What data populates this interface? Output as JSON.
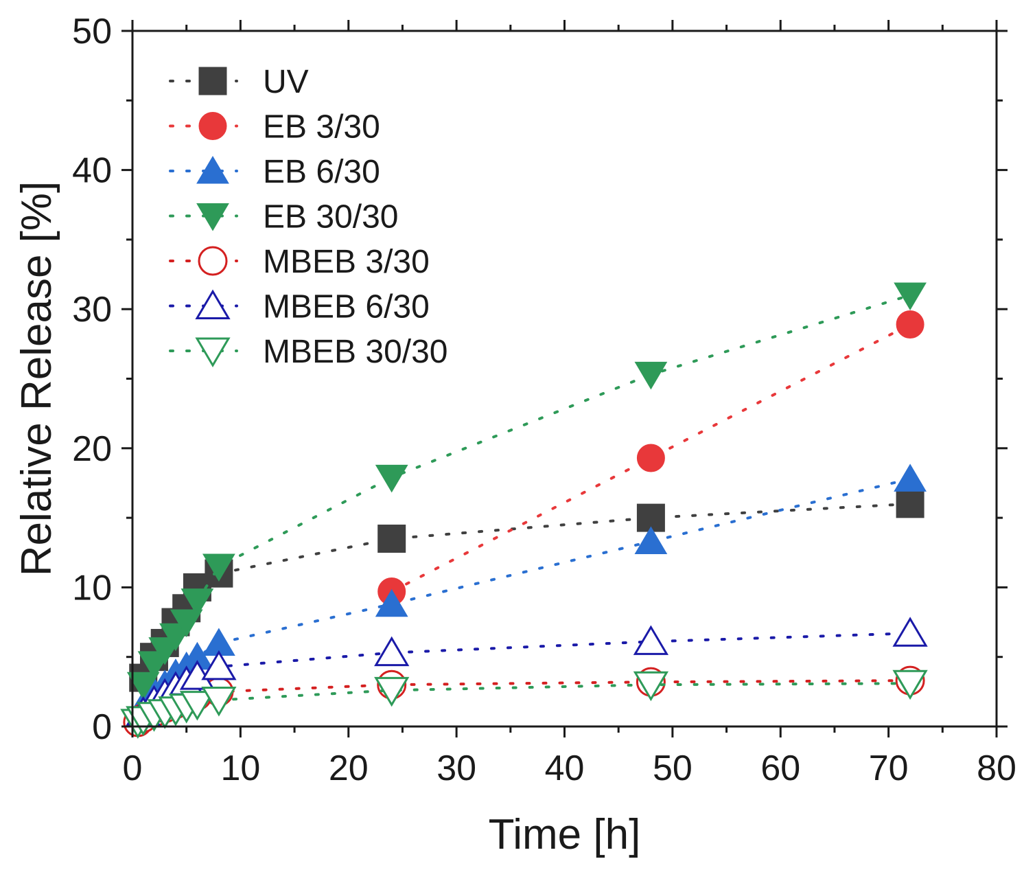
{
  "chart_data": {
    "type": "scatter",
    "title": "",
    "xlabel": "Time [h]",
    "ylabel": "Relative Release [%]",
    "xlim": [
      0,
      80
    ],
    "ylim": [
      0,
      50
    ],
    "xticks": [
      0,
      10,
      20,
      30,
      40,
      50,
      60,
      70,
      80
    ],
    "yticks": [
      0,
      10,
      20,
      30,
      40,
      50
    ],
    "grid": false,
    "legend_position": "top-left",
    "series": [
      {
        "name": "UV",
        "color": "#404040",
        "marker": "square",
        "filled": true,
        "x": [
          1,
          2,
          3,
          4,
          5,
          6,
          8,
          24,
          48,
          72
        ],
        "y": [
          3.5,
          5,
          6,
          7.5,
          8.5,
          10,
          11,
          13.5,
          15,
          16
        ]
      },
      {
        "name": "EB 3/30",
        "color": "#e8383a",
        "marker": "circle",
        "filled": true,
        "x": [
          24,
          48,
          72
        ],
        "y": [
          9.7,
          19.3,
          28.9
        ]
      },
      {
        "name": "EB 6/30",
        "color": "#2a6fd1",
        "marker": "triangle-up",
        "filled": true,
        "x": [
          1,
          2,
          3,
          4,
          5,
          6,
          8,
          24,
          48,
          72
        ],
        "y": [
          1.5,
          2.5,
          3,
          3.8,
          4.3,
          5,
          6,
          8.8,
          13.3,
          17.8
        ]
      },
      {
        "name": "EB 30/30",
        "color": "#2e9a58",
        "marker": "triangle-down",
        "filled": true,
        "x": [
          1,
          2,
          3,
          4,
          5,
          6,
          8,
          24,
          48,
          72
        ],
        "y": [
          3,
          4.5,
          5.5,
          6.5,
          7.5,
          9,
          11.5,
          17.9,
          25.3,
          31
        ]
      },
      {
        "name": "MBEB 3/30",
        "color": "#d42020",
        "marker": "circle",
        "filled": false,
        "x": [
          0.5,
          1,
          2,
          3,
          4,
          5,
          6,
          8,
          24,
          48,
          72
        ],
        "y": [
          0.3,
          0.6,
          1,
          1.3,
          1.6,
          1.9,
          2.2,
          2.5,
          3,
          3.2,
          3.3
        ]
      },
      {
        "name": "MBEB 6/30",
        "color": "#1a1aa8",
        "marker": "triangle-up",
        "filled": false,
        "x": [
          1,
          2,
          3,
          4,
          5,
          6,
          8,
          24,
          48,
          72
        ],
        "y": [
          1,
          1.8,
          2.3,
          2.8,
          3.2,
          3.6,
          4.3,
          5.3,
          6.1,
          6.7
        ]
      },
      {
        "name": "MBEB 30/30",
        "color": "#2e9a58",
        "marker": "triangle-down",
        "filled": false,
        "x": [
          0.5,
          1,
          2,
          3,
          4,
          5,
          6,
          8,
          24,
          48,
          72
        ],
        "y": [
          0.3,
          0.5,
          0.8,
          1,
          1.2,
          1.4,
          1.6,
          1.9,
          2.6,
          3,
          3.1
        ]
      }
    ]
  }
}
